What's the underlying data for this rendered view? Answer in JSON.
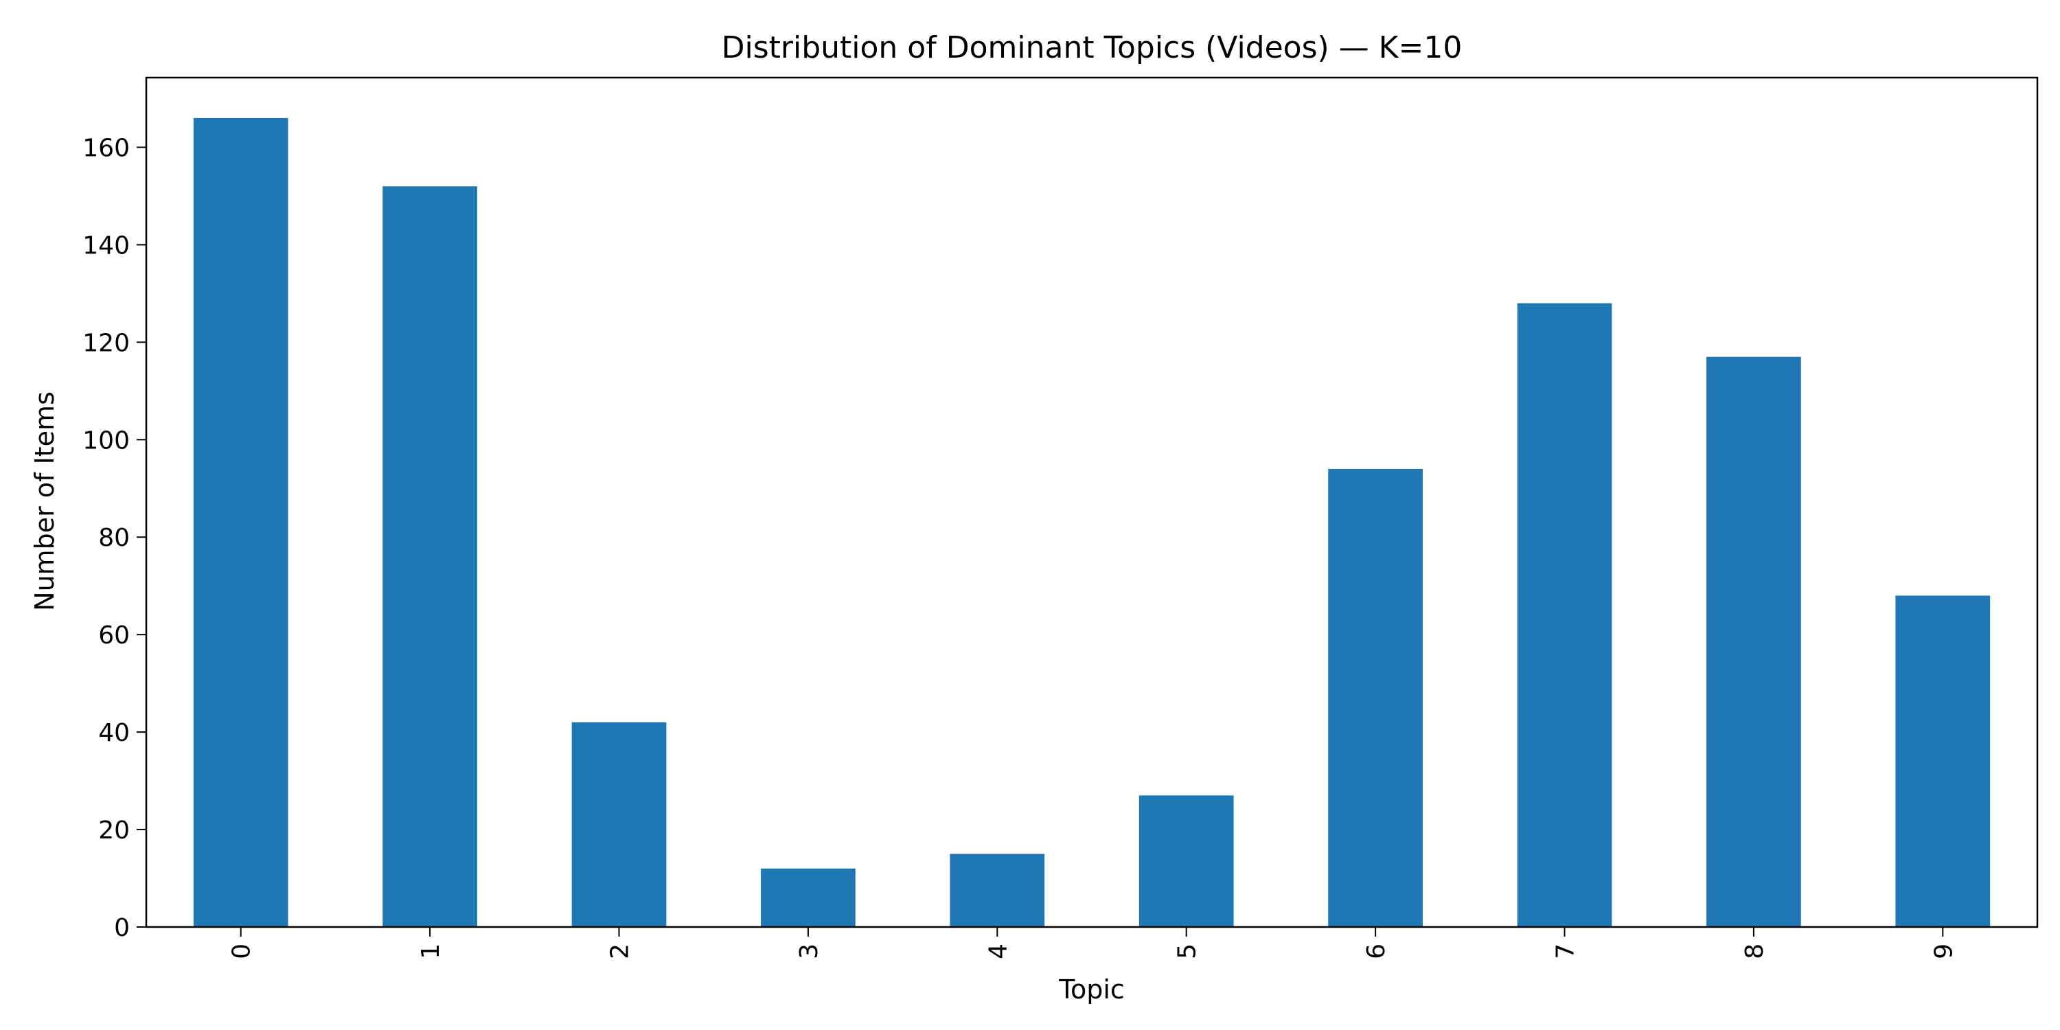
{
  "chart_data": {
    "type": "bar",
    "title": "Distribution of Dominant Topics (Videos) — K=10",
    "xlabel": "Topic",
    "ylabel": "Number of Items",
    "categories": [
      "0",
      "1",
      "2",
      "3",
      "4",
      "5",
      "6",
      "7",
      "8",
      "9"
    ],
    "values": [
      166,
      152,
      42,
      12,
      15,
      27,
      94,
      128,
      117,
      68
    ],
    "yticks": [
      0,
      20,
      40,
      60,
      80,
      100,
      120,
      140,
      160
    ],
    "ylim": [
      0,
      174.3
    ],
    "grid": false,
    "legend": "none",
    "bar_color": "#1f77b4",
    "xtick_rotation": "vertical"
  }
}
